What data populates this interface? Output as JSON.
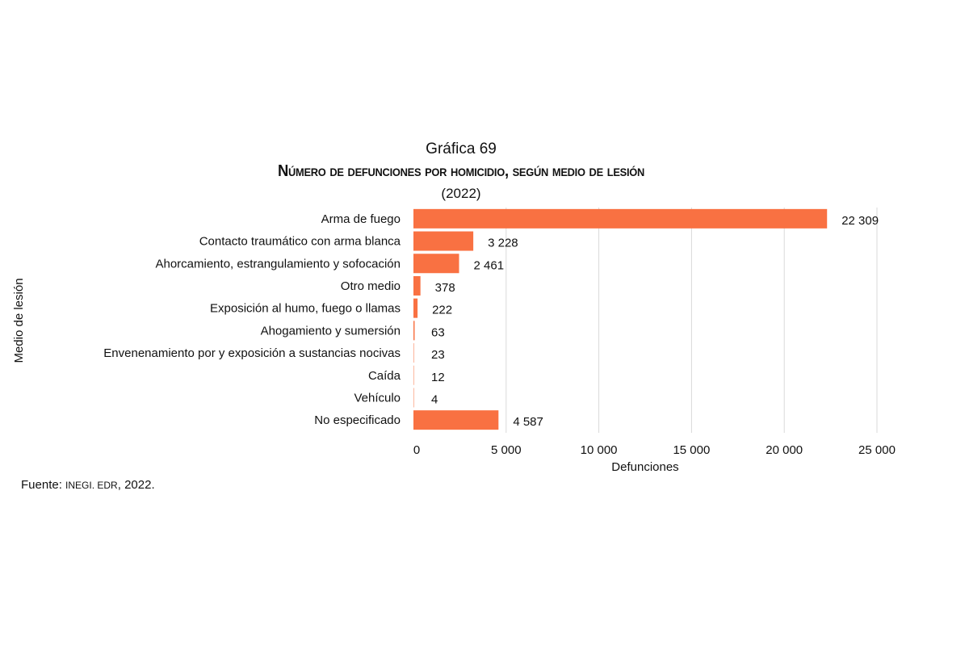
{
  "header": {
    "label": "Gráfica 69",
    "title": "Número de defunciones por homicidio, según medio de lesión",
    "subtitle": "(2022)"
  },
  "source": {
    "prefix": "Fuente:",
    "org": "INEGI. EDR",
    "year": ", 2022."
  },
  "chart_data": {
    "type": "bar",
    "orientation": "horizontal",
    "title": "Número de defunciones por homicidio, según medio de lesión",
    "subtitle": "(2022)",
    "xlabel": "Defunciones",
    "ylabel": "Medio de lesión",
    "xlim": [
      0,
      25000
    ],
    "xticks": [
      0,
      5000,
      10000,
      15000,
      20000,
      25000
    ],
    "xtick_labels": [
      "0",
      "5 000",
      "10 000",
      "15 000",
      "20 000",
      "25 000"
    ],
    "grid": "vertical",
    "bar_color": "#F97142",
    "categories": [
      "Arma de fuego",
      "Contacto traumático con arma blanca",
      "Ahorcamiento, estrangulamiento y sofocación",
      "Otro medio",
      "Exposición al humo, fuego o llamas",
      "Ahogamiento y sumersión",
      "Envenenamiento por y exposición a sustancias nocivas",
      "Caída",
      "Vehículo",
      "No especificado"
    ],
    "values": [
      22309,
      3228,
      2461,
      378,
      222,
      63,
      23,
      12,
      4,
      4587
    ],
    "data_labels": [
      "22 309",
      "3 228",
      "2 461",
      "378",
      "222",
      "63",
      "23",
      "12",
      "4",
      "4 587"
    ]
  }
}
